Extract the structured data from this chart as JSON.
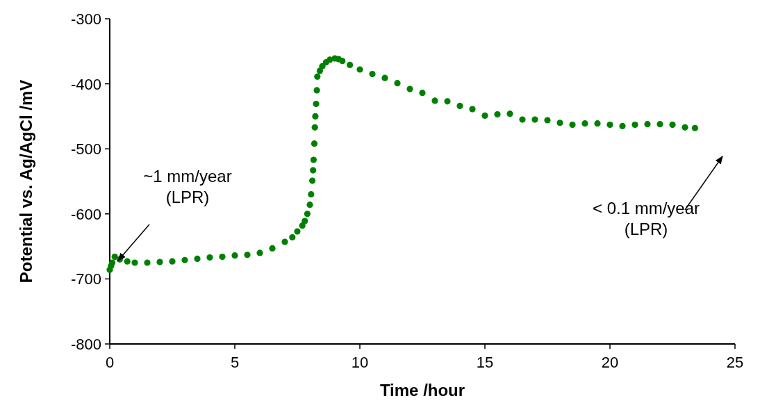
{
  "chart_data": {
    "type": "scatter",
    "xlabel": "Time /hour",
    "ylabel": "Potential vs. Ag/AgCl /mV",
    "xlim": [
      0,
      25
    ],
    "xticks": [
      0,
      5,
      10,
      15,
      20,
      25
    ],
    "ylim": [
      -800,
      -300
    ],
    "yticks": [
      -800,
      -700,
      -600,
      -500,
      -400,
      -300
    ],
    "grid": false,
    "marker": "circle",
    "series": [
      {
        "color": "#008000",
        "x": [
          0,
          0.05,
          0.1,
          0.2,
          0.4,
          0.7,
          1,
          1.5,
          2,
          2.5,
          3,
          3.5,
          4,
          4.5,
          5,
          5.5,
          6,
          6.5,
          7,
          7.3,
          7.5,
          7.7,
          7.8,
          7.9,
          8,
          8.05,
          8.1,
          8.13,
          8.15,
          8.18,
          8.2,
          8.22,
          8.25,
          8.28,
          8.3,
          8.4,
          8.5,
          8.65,
          8.8,
          9,
          9.15,
          9.3,
          9.6,
          10,
          10.5,
          11,
          11.5,
          12,
          12.5,
          13,
          13.5,
          14,
          14.5,
          15,
          15.5,
          16,
          16.5,
          17,
          17.5,
          18,
          18.5,
          19,
          19.5,
          20,
          20.5,
          21,
          21.5,
          22,
          22.5,
          23,
          23.4
        ],
        "values": [
          -686,
          -680,
          -675,
          -666,
          -670,
          -673,
          -675,
          -675,
          -674,
          -673,
          -671,
          -669,
          -667,
          -666,
          -664,
          -663,
          -660,
          -653,
          -643,
          -636,
          -627,
          -618,
          -611,
          -600,
          -586,
          -570,
          -549,
          -533,
          -517,
          -492,
          -467,
          -450,
          -431,
          -410,
          -389,
          -380,
          -373,
          -367,
          -363,
          -361,
          -362,
          -365,
          -371,
          -378,
          -385,
          -391,
          -399,
          -408,
          -414,
          -426,
          -427,
          -434,
          -439,
          -449,
          -447,
          -446,
          -455,
          -455,
          -456,
          -460,
          -463,
          -461,
          -461,
          -463,
          -465,
          -463,
          -462,
          -462,
          -463,
          -467,
          -468
        ]
      }
    ],
    "annotations": [
      "~1 mm/year\n(LPR)",
      "< 0.1 mm/year\n(LPR)"
    ]
  }
}
